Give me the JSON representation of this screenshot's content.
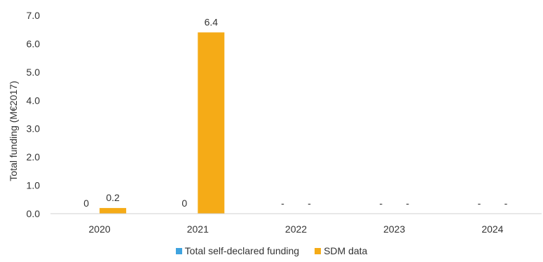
{
  "chart_data": {
    "type": "bar",
    "ylabel": "Total funding (M€2017)",
    "ylim": [
      0,
      7
    ],
    "yticks": [
      "0.0",
      "1.0",
      "2.0",
      "3.0",
      "4.0",
      "5.0",
      "6.0",
      "7.0"
    ],
    "categories": [
      "2020",
      "2021",
      "2022",
      "2023",
      "2024"
    ],
    "series": [
      {
        "name": "Total self-declared funding",
        "color": "#3fa3df",
        "values": [
          0,
          0,
          null,
          null,
          null
        ],
        "labels": [
          "0",
          "0",
          "-",
          "-",
          "-"
        ]
      },
      {
        "name": "SDM data",
        "color": "#f5ab17",
        "values": [
          0.2,
          6.4,
          null,
          null,
          null
        ],
        "labels": [
          "0.2",
          "6.4",
          "-",
          "-",
          "-"
        ]
      }
    ],
    "grid": false,
    "legend_position": "bottom"
  }
}
